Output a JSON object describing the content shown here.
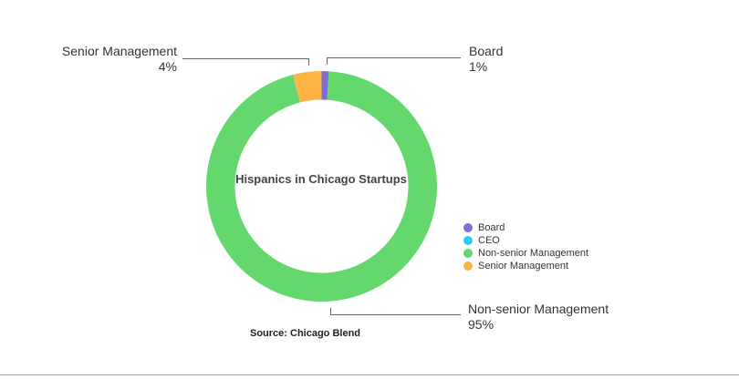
{
  "chart_data": {
    "type": "pie",
    "variant": "donut",
    "title": "Hispanics in Chicago Startups",
    "categories": [
      "Board",
      "CEO",
      "Non-senior Management",
      "Senior Management"
    ],
    "values": [
      1,
      0,
      95,
      4
    ],
    "unit": "%",
    "colors": {
      "Board": "#7b6fd6",
      "CEO": "#2ec8f5",
      "Non-senior Management": "#64d86c",
      "Senior Management": "#fdb444"
    },
    "legend_position": "right",
    "source": "Source: Chicago Blend"
  },
  "chart": {
    "center_title": "Hispanics in Chicago Startups",
    "callouts": {
      "senior": {
        "label": "Senior Management",
        "value": "4%"
      },
      "board": {
        "label": "Board",
        "value": "1%"
      },
      "nonsenior": {
        "label": "Non-senior Management",
        "value": "95%"
      }
    },
    "legend": [
      {
        "label": "Board",
        "color": "#7b6fd6"
      },
      {
        "label": "CEO",
        "color": "#2ec8f5"
      },
      {
        "label": "Non-senior Management",
        "color": "#64d86c"
      },
      {
        "label": "Senior Management",
        "color": "#fdb444"
      }
    ],
    "source": "Source: Chicago Blend"
  }
}
